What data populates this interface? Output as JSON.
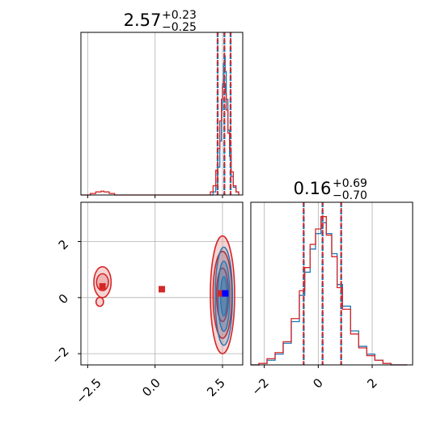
{
  "chart_data": {
    "type": "corner",
    "colors": {
      "blue": "#1f77b4",
      "red": "#d62728",
      "red_fill": "#e8a0a0",
      "grid": "#b0b0b0",
      "blue_marker": "#0000ff"
    },
    "panels": [
      {
        "id": "hist-param-1",
        "type": "histogram",
        "title_value": "2.57",
        "title_plus": "+0.23",
        "title_minus": "−0.25",
        "xlim": [
          -2.75,
          3.25
        ],
        "grid_x": [
          -2.5,
          0.0,
          2.5
        ],
        "quantile_lines": [
          2.32,
          2.57,
          2.8
        ],
        "series": [
          {
            "name": "",
            "color": "blue",
            "x": [
              2.05,
              2.15,
              2.25,
              2.32,
              2.4,
              2.46,
              2.5,
              2.54,
              2.57,
              2.6,
              2.64,
              2.7,
              2.76,
              2.82,
              2.9,
              3.0,
              3.1
            ],
            "y": [
              0.0,
              0.02,
              0.06,
              0.18,
              0.35,
              0.55,
              0.72,
              0.85,
              0.9,
              0.8,
              0.62,
              0.42,
              0.25,
              0.12,
              0.05,
              0.02,
              0.0
            ]
          },
          {
            "name": "",
            "color": "red",
            "x": [
              -2.75,
              -2.6,
              -2.4,
              -2.2,
              -2.0,
              -1.9,
              -1.7,
              -1.5,
              1.95,
              2.05,
              2.15,
              2.25,
              2.32,
              2.4,
              2.46,
              2.5,
              2.54,
              2.57,
              2.6,
              2.64,
              2.7,
              2.76,
              2.82,
              2.9,
              3.0,
              3.1
            ],
            "y": [
              0.0,
              0.0,
              0.01,
              0.02,
              0.025,
              0.02,
              0.01,
              0.0,
              0.0,
              0.02,
              0.06,
              0.16,
              0.3,
              0.48,
              0.62,
              0.7,
              0.75,
              0.72,
              0.66,
              0.55,
              0.4,
              0.3,
              0.15,
              0.06,
              0.02,
              0.0
            ]
          }
        ]
      },
      {
        "id": "hist-param-2",
        "type": "histogram",
        "title_value": "0.16",
        "title_plus": "+0.69",
        "title_minus": "−0.70",
        "xlim": [
          -2.5,
          3.5
        ],
        "grid_x": [
          -2,
          0,
          2
        ],
        "quantile_lines": [
          -0.54,
          0.16,
          0.85
        ],
        "series": [
          {
            "name": "",
            "color": "blue",
            "x": [
              -2.5,
              -2.2,
              -1.9,
              -1.6,
              -1.3,
              -1.0,
              -0.7,
              -0.5,
              -0.3,
              -0.1,
              0.1,
              0.3,
              0.5,
              0.7,
              0.9,
              1.2,
              1.5,
              1.8,
              2.1,
              2.4,
              2.7,
              3.0,
              3.3
            ],
            "y": [
              0.0,
              0.01,
              0.03,
              0.07,
              0.14,
              0.28,
              0.45,
              0.6,
              0.75,
              0.85,
              0.92,
              0.85,
              0.72,
              0.52,
              0.38,
              0.22,
              0.12,
              0.07,
              0.03,
              0.01,
              0.0,
              0.0,
              0.0
            ]
          },
          {
            "name": "",
            "color": "red",
            "x": [
              -2.5,
              -2.2,
              -1.9,
              -1.6,
              -1.3,
              -1.0,
              -0.7,
              -0.5,
              -0.3,
              -0.1,
              0.1,
              0.3,
              0.5,
              0.7,
              0.9,
              1.2,
              1.5,
              1.8,
              2.1,
              2.4,
              2.7,
              3.0,
              3.3
            ],
            "y": [
              0.0,
              0.01,
              0.04,
              0.08,
              0.15,
              0.3,
              0.48,
              0.63,
              0.78,
              0.88,
              0.96,
              0.84,
              0.7,
              0.5,
              0.36,
              0.2,
              0.11,
              0.06,
              0.03,
              0.01,
              0.0,
              0.0,
              0.0
            ]
          }
        ]
      },
      {
        "id": "contour-2d",
        "type": "contour",
        "xlim": [
          -2.75,
          3.25
        ],
        "ylim": [
          -2.4,
          3.4
        ],
        "grid_x": [
          -2.5,
          0.0,
          2.5
        ],
        "grid_y": [
          -2,
          0,
          2
        ],
        "red_blobs": [
          {
            "cx": 2.5,
            "cy": 0.1,
            "rx": [
              0.45,
              0.35,
              0.22
            ],
            "ry": [
              2.1,
              1.55,
              0.95
            ]
          },
          {
            "cx": -1.95,
            "cy": 0.55,
            "rx": [
              0.32,
              0.22
            ],
            "ry": [
              0.55,
              0.3
            ]
          },
          {
            "cx": -2.05,
            "cy": -0.15,
            "rx": [
              0.14
            ],
            "ry": [
              0.16
            ]
          }
        ],
        "blue_blob": {
          "cx": 2.55,
          "cy": 0.05,
          "rx": [
            0.32,
            0.22,
            0.12
          ],
          "ry": [
            1.75,
            1.25,
            0.7
          ]
        },
        "markers": [
          {
            "color": "red",
            "x": -1.95,
            "y": 0.4
          },
          {
            "color": "red",
            "x": 0.25,
            "y": 0.3
          },
          {
            "color": "red",
            "x": 2.45,
            "y": 0.15
          },
          {
            "color": "blue_marker",
            "x": 2.6,
            "y": 0.15
          }
        ]
      }
    ],
    "tick_labels": {
      "contour_x": [
        "−2.5",
        "0.0",
        "2.5"
      ],
      "contour_y": [
        "2",
        "0",
        "−2"
      ],
      "hist2_x": [
        "−2",
        "0",
        "2"
      ]
    }
  }
}
